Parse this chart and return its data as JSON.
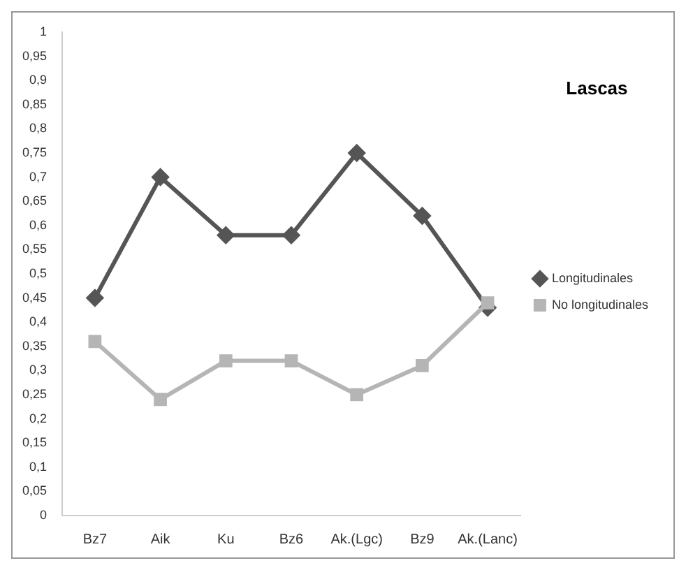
{
  "chart_data": {
    "type": "line",
    "title": "Lascas",
    "categories": [
      "Bz7",
      "Aik",
      "Ku",
      "Bz6",
      "Ak.(Lgc)",
      "Bz9",
      "Ak.(Lanc)"
    ],
    "series": [
      {
        "name": "Longitudinales",
        "color": "#555555",
        "marker": "diamond",
        "values": [
          0.45,
          0.7,
          0.58,
          0.58,
          0.75,
          0.62,
          0.43
        ]
      },
      {
        "name": "No longitudinales",
        "color": "#b5b5b5",
        "marker": "square",
        "values": [
          0.36,
          0.24,
          0.32,
          0.32,
          0.25,
          0.31,
          0.44
        ]
      }
    ],
    "ylim": [
      0,
      1
    ],
    "yticks": [
      0,
      {
        "value": 0.05,
        "label": "0,05"
      },
      {
        "value": 0.1,
        "label": "0,1"
      },
      {
        "value": 0.15,
        "label": "0,15"
      },
      {
        "value": 0.2,
        "label": "0,2"
      },
      {
        "value": 0.25,
        "label": "0,25"
      },
      {
        "value": 0.3,
        "label": "0,3"
      },
      {
        "value": 0.35,
        "label": "0,35"
      },
      {
        "value": 0.4,
        "label": "0,4"
      },
      {
        "value": 0.45,
        "label": "0,45"
      },
      {
        "value": 0.5,
        "label": "0,5"
      },
      {
        "value": 0.55,
        "label": "0,55"
      },
      {
        "value": 0.6,
        "label": "0,6"
      },
      {
        "value": 0.65,
        "label": "0,65"
      },
      {
        "value": 0.7,
        "label": "0,7"
      },
      {
        "value": 0.75,
        "label": "0,75"
      },
      {
        "value": 0.8,
        "label": "0,8"
      },
      {
        "value": 0.85,
        "label": "0,85"
      },
      {
        "value": 0.9,
        "label": "0,9"
      },
      {
        "value": 0.95,
        "label": "0,95"
      },
      1
    ],
    "grid": false,
    "legend": "right",
    "line_style": "solid"
  }
}
